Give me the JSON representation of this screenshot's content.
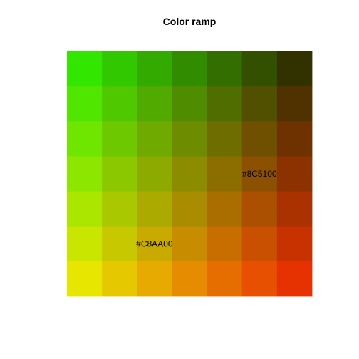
{
  "chart_data": {
    "type": "heatmap",
    "title": "Color ramp",
    "xlabel": "",
    "ylabel": "",
    "n_cols": 7,
    "n_rows": 7,
    "grid": false,
    "legend": "none",
    "cells": [
      [
        "#32E600",
        "#32C800",
        "#32AA00",
        "#328C00",
        "#326E00",
        "#325000",
        "#323200"
      ],
      [
        "#50E600",
        "#50C800",
        "#50AA00",
        "#508C00",
        "#506E00",
        "#505000",
        "#503200"
      ],
      [
        "#6EE600",
        "#6EC800",
        "#6EAA00",
        "#6E8C00",
        "#6E6E00",
        "#6E5000",
        "#6E3200"
      ],
      [
        "#8CE600",
        "#8CC800",
        "#8CAA00",
        "#8C8C00",
        "#8C6E00",
        "#8C5100",
        "#8C3200"
      ],
      [
        "#AAE600",
        "#AAC800",
        "#AAAA00",
        "#AA8C00",
        "#AA6E00",
        "#AA5000",
        "#AA3200"
      ],
      [
        "#C8E600",
        "#C8C800",
        "#C8AA00",
        "#C88C00",
        "#C86E00",
        "#C85000",
        "#C83200"
      ],
      [
        "#E6E600",
        "#E6C800",
        "#E6AA00",
        "#E68C00",
        "#E66E00",
        "#E65000",
        "#E63200"
      ]
    ],
    "annotations": [
      {
        "text": "#8C5100",
        "row": 3,
        "col": 5
      },
      {
        "text": "#C8AA00",
        "row": 5,
        "col": 2
      }
    ]
  }
}
